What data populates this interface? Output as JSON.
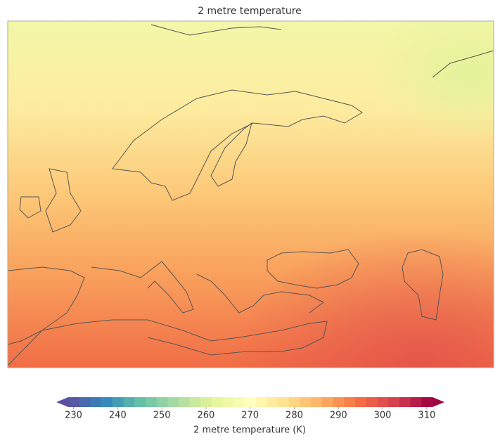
{
  "chart_data": {
    "type": "map",
    "title": "2 metre temperature",
    "colorbar": {
      "label": "2 metre temperature (K)",
      "lim": [
        228.8,
        311.3
      ],
      "step": 2.5,
      "ticks": [
        230,
        240,
        250,
        260,
        270,
        280,
        290,
        300,
        310
      ],
      "colors": [
        "#5e4fa2",
        "#3288bd",
        "#66c2a5",
        "#abdda4",
        "#e6f598",
        "#ffffbf",
        "#fee08b",
        "#fdae61",
        "#f46d43",
        "#d53e4f",
        "#9e0142"
      ]
    }
  }
}
